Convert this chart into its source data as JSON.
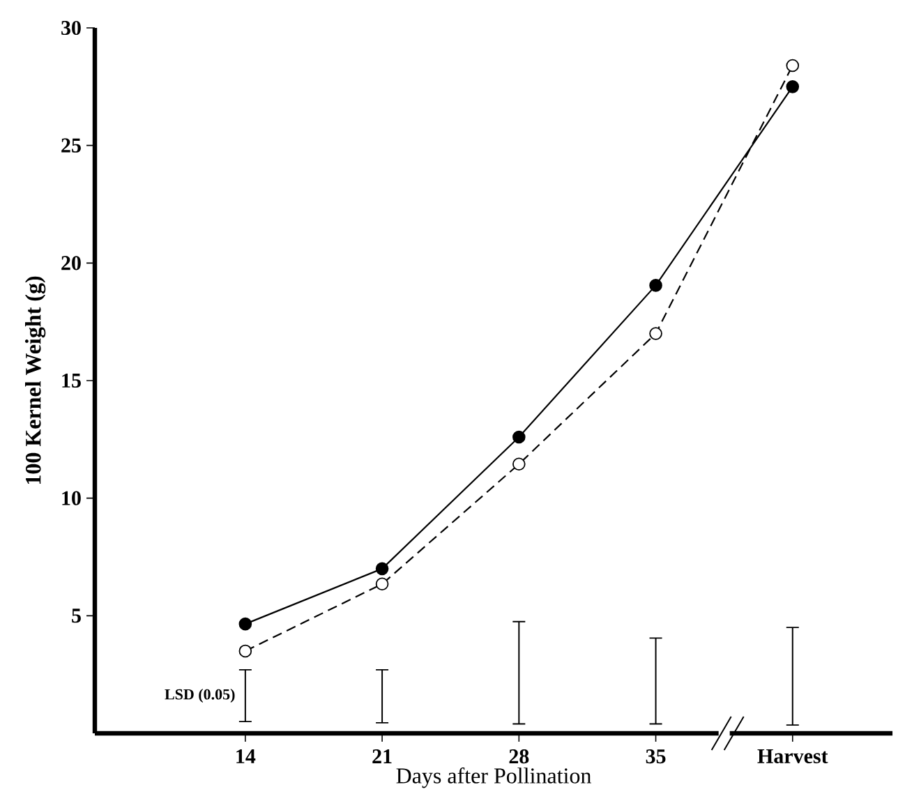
{
  "chart_data": {
    "type": "line",
    "xlabel": "Days after Pollination",
    "ylabel": "100 Kernel Weight (g)",
    "categories": [
      "14",
      "21",
      "28",
      "35",
      "Harvest"
    ],
    "ylim": [
      0,
      30
    ],
    "yticks": [
      5,
      10,
      15,
      20,
      25,
      30
    ],
    "series": [
      {
        "color": "#000000",
        "marker": "circle",
        "line_style": "solid",
        "values": [
          4.65,
          7.0,
          12.6,
          19.05,
          27.5
        ]
      },
      {
        "color": "#000000",
        "marker": "circle",
        "line_style": "dashed",
        "values": [
          3.5,
          6.35,
          11.45,
          17.0,
          28.4
        ]
      },
      {
        "type": "bar",
        "color": "#000000",
        "base": [
          0.5,
          0.45,
          0.4,
          0.4,
          0.35
        ],
        "values": [
          2.2,
          2.25,
          4.35,
          3.65,
          4.15
        ]
      }
    ],
    "annotations": [
      "LSD (0.05)"
    ]
  }
}
